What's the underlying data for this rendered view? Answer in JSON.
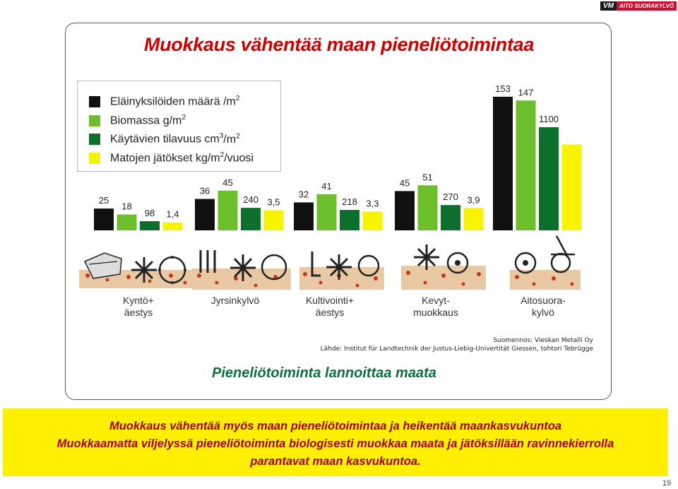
{
  "logo": {
    "brand": "VM",
    "name": "AITO SUORAKYLVÖ"
  },
  "title": "Muokkaus vähentää maan pieneliötoimintaa",
  "legend": [
    {
      "label": "Eläinyksilöiden määrä /m",
      "sup": "2",
      "suffix": "",
      "color": "#111111"
    },
    {
      "label": "Biomassa g/m",
      "sup": "2",
      "suffix": "",
      "color": "#6cbf2a"
    },
    {
      "label": "Käytävien tilavuus cm",
      "sup": "3",
      "suffix": "/m2",
      "color": "#0d6f2c"
    },
    {
      "label": "Matojen jätökset kg/m",
      "sup": "2",
      "suffix": "/vuosi",
      "color": "#f8f300"
    }
  ],
  "chart_data": {
    "type": "bar",
    "categories": [
      "Kyntö+\näestys",
      "Jyrsinkylvö",
      "Kultivointi+\näestys",
      "Kevyt-\nmuokkaus",
      "Aitosuora-\nkylvö"
    ],
    "series": [
      {
        "name": "Eläinyksilöiden määrä /m2",
        "color": "#111111",
        "values": [
          25,
          36,
          32,
          45,
          153
        ],
        "labels": [
          "25",
          "36",
          "32",
          "45",
          "153"
        ]
      },
      {
        "name": "Biomassa g/m2",
        "color": "#6cbf2a",
        "values": [
          18,
          45,
          41,
          51,
          147
        ],
        "labels": [
          "18",
          "45",
          "41",
          "51",
          "147"
        ]
      },
      {
        "name": "Käytävien tilavuus cm3/m2",
        "color": "#0d6f2c",
        "values": [
          98,
          240,
          218,
          270,
          1100
        ],
        "labels": [
          "98",
          "240",
          "218",
          "270",
          "1100"
        ]
      },
      {
        "name": "Matojen jätökset kg/m2/vuosi",
        "color": "#f8f300",
        "values": [
          1.4,
          3.5,
          3.3,
          3.9,
          15
        ],
        "labels": [
          "1,4",
          "3,5",
          "3,3",
          "3,9",
          ""
        ]
      }
    ]
  },
  "source": {
    "line1": "Suomennos: Vieskan Metalli Oy",
    "line2": "Lähde: Institut für Landtechnik der Justus-Liebig-Univertität Giessen, tohtori Tebrügge"
  },
  "subtitle": "Pieneliötoiminta lannoittaa maata",
  "bottom": {
    "line1": "Muokkaus vähentää myös maan pieneliötoimintaa ja heikentää maankasvukuntoa",
    "line2": "Muokkaamatta viljelyssä pieneliötoiminta biologisesti muokkaa maata ja jätöksillään ravinnekierrolla",
    "line3": "parantavat maan kasvukuntoa."
  },
  "page_number": "19"
}
